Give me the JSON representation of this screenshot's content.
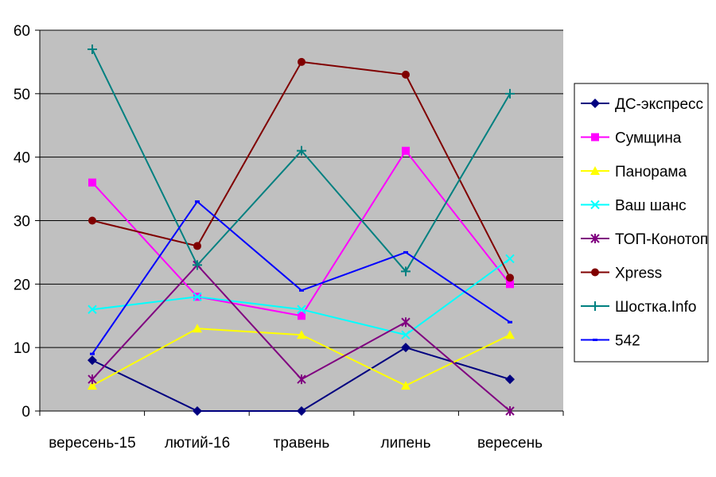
{
  "chart_data": {
    "type": "line",
    "categories": [
      "вересень-15",
      "лютий-16",
      "травень",
      "липень",
      "вересень"
    ],
    "ylim": [
      0,
      60
    ],
    "yticks": [
      0,
      10,
      20,
      30,
      40,
      50,
      60
    ],
    "grid": true,
    "plot_background": "#c0c0c0",
    "legend_position": "right",
    "series": [
      {
        "name": "ДС-экспресс",
        "color": "#000080",
        "marker": "diamond",
        "values": [
          8,
          0,
          0,
          10,
          5
        ]
      },
      {
        "name": "Сумщина",
        "color": "#ff00ff",
        "marker": "square",
        "values": [
          36,
          18,
          15,
          41,
          20
        ]
      },
      {
        "name": "Панорама",
        "color": "#ffff00",
        "marker": "triangle",
        "values": [
          4,
          13,
          12,
          4,
          12
        ]
      },
      {
        "name": "Ваш шанс",
        "color": "#00ffff",
        "marker": "x",
        "values": [
          16,
          18,
          16,
          12,
          24
        ]
      },
      {
        "name": "ТОП-Конотоп",
        "color": "#800080",
        "marker": "star",
        "values": [
          5,
          23,
          5,
          14,
          0
        ]
      },
      {
        "name": "Xpress",
        "color": "#800000",
        "marker": "circle",
        "values": [
          30,
          26,
          55,
          53,
          21
        ]
      },
      {
        "name": "Шостка.Info",
        "color": "#008080",
        "marker": "plus",
        "values": [
          57,
          23,
          41,
          22,
          50
        ]
      },
      {
        "name": "542",
        "color": "#0000ff",
        "marker": "dash",
        "values": [
          9,
          33,
          19,
          25,
          14
        ]
      }
    ]
  }
}
